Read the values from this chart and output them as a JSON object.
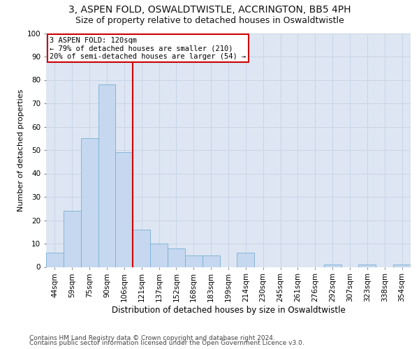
{
  "title1": "3, ASPEN FOLD, OSWALDTWISTLE, ACCRINGTON, BB5 4PH",
  "title2": "Size of property relative to detached houses in Oswaldtwistle",
  "xlabel": "Distribution of detached houses by size in Oswaldtwistle",
  "ylabel": "Number of detached properties",
  "categories": [
    "44sqm",
    "59sqm",
    "75sqm",
    "90sqm",
    "106sqm",
    "121sqm",
    "137sqm",
    "152sqm",
    "168sqm",
    "183sqm",
    "199sqm",
    "214sqm",
    "230sqm",
    "245sqm",
    "261sqm",
    "276sqm",
    "292sqm",
    "307sqm",
    "323sqm",
    "338sqm",
    "354sqm"
  ],
  "values": [
    6,
    24,
    55,
    78,
    49,
    16,
    10,
    8,
    5,
    5,
    0,
    6,
    0,
    0,
    0,
    0,
    1,
    0,
    1,
    0,
    1
  ],
  "bar_color": "#c5d8ef",
  "bar_edge_color": "#7bafd4",
  "vline_index": 5,
  "annotation_text": "3 ASPEN FOLD: 120sqm\n← 79% of detached houses are smaller (210)\n20% of semi-detached houses are larger (54) →",
  "annotation_box_color": "#ffffff",
  "annotation_box_edge_color": "#cc0000",
  "ylim": [
    0,
    100
  ],
  "yticks": [
    0,
    10,
    20,
    30,
    40,
    50,
    60,
    70,
    80,
    90,
    100
  ],
  "grid_color": "#c8d4e8",
  "background_color": "#dde6f2",
  "footer1": "Contains HM Land Registry data © Crown copyright and database right 2024.",
  "footer2": "Contains public sector information licensed under the Open Government Licence v3.0.",
  "title1_fontsize": 10,
  "title2_fontsize": 9,
  "xlabel_fontsize": 8.5,
  "ylabel_fontsize": 8,
  "tick_fontsize": 7.5,
  "annotation_fontsize": 7.5,
  "footer_fontsize": 6.5
}
